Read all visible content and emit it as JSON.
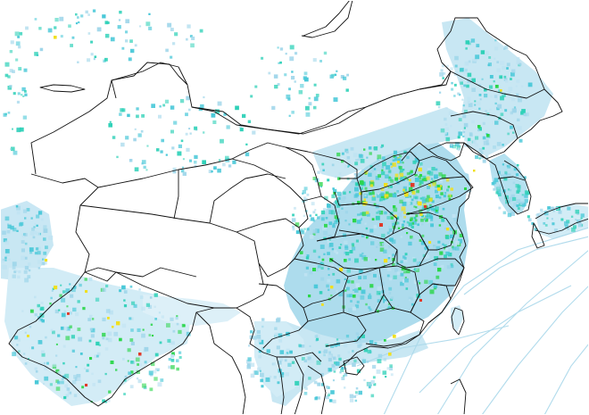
{
  "map": {
    "colors": {
      "background": "#ffffff",
      "border": "#111111",
      "low": "#bfe3f2",
      "light": "#9fd6ea",
      "mid": "#49c8d8",
      "teal": "#2fd1b8",
      "green": "#2bd64a",
      "yellow": "#f0e020",
      "red": "#e03a2a"
    }
  }
}
